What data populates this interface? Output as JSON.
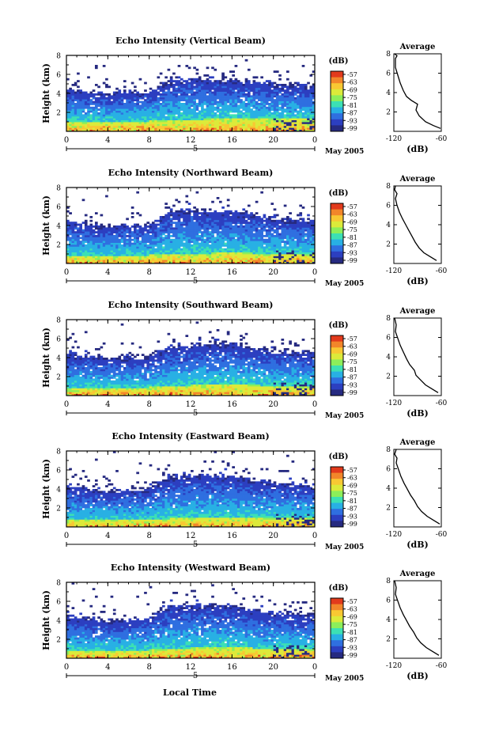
{
  "figure": {
    "shared_xlabel": "Local Time",
    "date_label": "May 2005",
    "day_label": "5",
    "colorbar_unit": "(dB)",
    "colorbar_ticks": [
      "-57",
      "-63",
      "-69",
      "-75",
      "-81",
      "-87",
      "-93",
      "-99"
    ],
    "colorbar_colors": [
      "#e23a1c",
      "#f2862a",
      "#f8c833",
      "#dcea3a",
      "#8cee5a",
      "#3ce0b4",
      "#28b0e4",
      "#2f6fe0",
      "#2c3fc0",
      "#262a80"
    ],
    "average_title": "Average",
    "average_xlabel": "(dB)"
  },
  "chart_data": [
    {
      "type": "heatmap",
      "title": "Echo Intensity (Vertical Beam)",
      "xlabel": "",
      "ylabel": "Height (km)",
      "xlim": [
        0,
        24
      ],
      "ylim": [
        0,
        8
      ],
      "x_ticks": [
        "0",
        "4",
        "8",
        "12",
        "16",
        "20",
        "0"
      ],
      "y_ticks": [
        "2",
        "4",
        "6",
        "8"
      ],
      "x_tick_values": [
        0,
        4,
        8,
        12,
        16,
        20,
        24
      ],
      "y_tick_values": [
        2,
        4,
        6,
        8
      ],
      "colorbar_range": [
        -99,
        -57
      ],
      "description_values": {
        "echo_top_km": [
          [
            0,
            4.6
          ],
          [
            4,
            4.0
          ],
          [
            8,
            4.2
          ],
          [
            10,
            5.5
          ],
          [
            12,
            5.6
          ],
          [
            16,
            5.5
          ],
          [
            20,
            5.0
          ],
          [
            24,
            4.8
          ]
        ],
        "strong_layer_top_km": [
          [
            0,
            1.0
          ],
          [
            8,
            1.1
          ],
          [
            12,
            1.2
          ],
          [
            16,
            1.5
          ],
          [
            20,
            1.3
          ],
          [
            24,
            1.4
          ]
        ]
      }
    },
    {
      "type": "heatmap",
      "title": "Echo Intensity (Northward Beam)",
      "xlabel": "",
      "ylabel": "Height (km)",
      "xlim": [
        0,
        24
      ],
      "ylim": [
        0,
        8
      ],
      "x_ticks": [
        "0",
        "4",
        "8",
        "12",
        "16",
        "20",
        "0"
      ],
      "y_ticks": [
        "2",
        "4",
        "6",
        "8"
      ],
      "x_tick_values": [
        0,
        4,
        8,
        12,
        16,
        20,
        24
      ],
      "y_tick_values": [
        2,
        4,
        6,
        8
      ],
      "colorbar_range": [
        -99,
        -57
      ],
      "description_values": {
        "echo_top_km": [
          [
            0,
            4.5
          ],
          [
            4,
            3.9
          ],
          [
            8,
            4.1
          ],
          [
            10,
            5.5
          ],
          [
            12,
            5.7
          ],
          [
            16,
            5.6
          ],
          [
            20,
            4.8
          ],
          [
            24,
            4.5
          ]
        ],
        "strong_layer_top_km": [
          [
            0,
            0.8
          ],
          [
            8,
            0.9
          ],
          [
            12,
            1.0
          ],
          [
            16,
            1.2
          ],
          [
            20,
            1.0
          ],
          [
            24,
            1.1
          ]
        ]
      }
    },
    {
      "type": "heatmap",
      "title": "Echo Intensity (Southward Beam)",
      "xlabel": "",
      "ylabel": "Height (km)",
      "xlim": [
        0,
        24
      ],
      "ylim": [
        0,
        8
      ],
      "x_ticks": [
        "0",
        "4",
        "8",
        "12",
        "16",
        "20",
        "0"
      ],
      "y_ticks": [
        "2",
        "4",
        "6",
        "8"
      ],
      "x_tick_values": [
        0,
        4,
        8,
        12,
        16,
        20,
        24
      ],
      "y_tick_values": [
        2,
        4,
        6,
        8
      ],
      "colorbar_range": [
        -99,
        -57
      ],
      "description_values": {
        "echo_top_km": [
          [
            0,
            4.6
          ],
          [
            4,
            4.0
          ],
          [
            8,
            4.1
          ],
          [
            10,
            5.3
          ],
          [
            12,
            5.4
          ],
          [
            16,
            5.5
          ],
          [
            20,
            4.7
          ],
          [
            24,
            4.6
          ]
        ],
        "strong_layer_top_km": [
          [
            0,
            0.8
          ],
          [
            8,
            0.9
          ],
          [
            12,
            1.1
          ],
          [
            16,
            1.3
          ],
          [
            20,
            1.0
          ],
          [
            24,
            1.1
          ]
        ]
      }
    },
    {
      "type": "heatmap",
      "title": "Echo Intensity (Eastward Beam)",
      "xlabel": "",
      "ylabel": "Height (km)",
      "xlim": [
        0,
        24
      ],
      "ylim": [
        0,
        8
      ],
      "x_ticks": [
        "0",
        "4",
        "8",
        "12",
        "16",
        "20",
        "0"
      ],
      "y_ticks": [
        "2",
        "4",
        "6",
        "8"
      ],
      "x_tick_values": [
        0,
        4,
        8,
        12,
        16,
        20,
        24
      ],
      "y_tick_values": [
        2,
        4,
        6,
        8
      ],
      "colorbar_range": [
        -99,
        -57
      ],
      "description_values": {
        "echo_top_km": [
          [
            0,
            4.4
          ],
          [
            4,
            3.8
          ],
          [
            8,
            4.0
          ],
          [
            10,
            5.4
          ],
          [
            12,
            5.5
          ],
          [
            16,
            5.5
          ],
          [
            20,
            4.6
          ],
          [
            24,
            4.4
          ]
        ],
        "strong_layer_top_km": [
          [
            0,
            0.7
          ],
          [
            8,
            0.8
          ],
          [
            12,
            1.0
          ],
          [
            16,
            1.1
          ],
          [
            20,
            0.9
          ],
          [
            24,
            1.0
          ]
        ]
      }
    },
    {
      "type": "heatmap",
      "title": "Echo Intensity (Westward Beam)",
      "xlabel": "",
      "ylabel": "Height (km)",
      "xlim": [
        0,
        24
      ],
      "ylim": [
        0,
        8
      ],
      "x_ticks": [
        "0",
        "4",
        "8",
        "12",
        "16",
        "20",
        "0"
      ],
      "y_ticks": [
        "2",
        "4",
        "6",
        "8"
      ],
      "x_tick_values": [
        0,
        4,
        8,
        12,
        16,
        20,
        24
      ],
      "y_tick_values": [
        2,
        4,
        6,
        8
      ],
      "colorbar_range": [
        -99,
        -57
      ],
      "description_values": {
        "echo_top_km": [
          [
            0,
            4.6
          ],
          [
            4,
            4.0
          ],
          [
            8,
            4.2
          ],
          [
            10,
            5.6
          ],
          [
            12,
            5.7
          ],
          [
            16,
            5.6
          ],
          [
            20,
            4.8
          ],
          [
            24,
            4.6
          ]
        ],
        "strong_layer_top_km": [
          [
            0,
            0.8
          ],
          [
            8,
            0.9
          ],
          [
            12,
            1.1
          ],
          [
            16,
            1.2
          ],
          [
            20,
            1.0
          ],
          [
            24,
            1.1
          ]
        ]
      }
    },
    {
      "type": "line",
      "title": "Average",
      "xlabel": "(dB)",
      "ylabel": "",
      "xlim": [
        -120,
        -60
      ],
      "ylim": [
        0,
        8
      ],
      "x_ticks": [
        "-120",
        "-60"
      ],
      "y_ticks": [
        "2",
        "4",
        "6",
        "8"
      ],
      "x_tick_values": [
        -120,
        -60
      ],
      "y_tick_values": [
        2,
        4,
        6,
        8
      ],
      "series": [
        {
          "x": [
            -61,
            -70,
            -80,
            -88,
            -92,
            -90,
            -98,
            -104,
            -108,
            -112,
            -115,
            -118,
            -118,
            -118,
            -116,
            -119
          ],
          "y": [
            0.3,
            0.6,
            1.0,
            1.6,
            2.2,
            2.8,
            3.2,
            3.6,
            4.2,
            5.0,
            5.8,
            6.6,
            7.2,
            7.5,
            7.8,
            8.0
          ]
        }
      ]
    },
    {
      "type": "line",
      "title": "Average",
      "xlabel": "(dB)",
      "ylabel": "",
      "xlim": [
        -120,
        -60
      ],
      "ylim": [
        0,
        8
      ],
      "x_ticks": [
        "-120",
        "-60"
      ],
      "y_ticks": [
        "2",
        "4",
        "6",
        "8"
      ],
      "x_tick_values": [
        -120,
        -60
      ],
      "y_tick_values": [
        2,
        4,
        6,
        8
      ],
      "series": [
        {
          "x": [
            -66,
            -74,
            -82,
            -88,
            -93,
            -97,
            -101,
            -105,
            -109,
            -113,
            -116,
            -118,
            -116,
            -119,
            -118
          ],
          "y": [
            0.3,
            0.7,
            1.1,
            1.6,
            2.2,
            2.8,
            3.4,
            4.0,
            4.6,
            5.3,
            6.0,
            6.7,
            7.2,
            7.6,
            8.0
          ]
        }
      ]
    },
    {
      "type": "line",
      "title": "Average",
      "xlabel": "(dB)",
      "ylabel": "",
      "xlim": [
        -120,
        -60
      ],
      "ylim": [
        0,
        8
      ],
      "x_ticks": [
        "-120",
        "-60"
      ],
      "y_ticks": [
        "2",
        "4",
        "6",
        "8"
      ],
      "x_tick_values": [
        -120,
        -60
      ],
      "y_tick_values": [
        2,
        4,
        6,
        8
      ],
      "series": [
        {
          "x": [
            -64,
            -72,
            -80,
            -86,
            -92,
            -94,
            -100,
            -104,
            -108,
            -112,
            -115,
            -118,
            -117,
            -119
          ],
          "y": [
            0.3,
            0.7,
            1.1,
            1.6,
            2.1,
            2.6,
            3.2,
            3.8,
            4.5,
            5.2,
            5.9,
            6.6,
            7.3,
            8.0
          ]
        }
      ]
    },
    {
      "type": "line",
      "title": "Average",
      "xlabel": "(dB)",
      "ylabel": "",
      "xlim": [
        -120,
        -60
      ],
      "ylim": [
        0,
        8
      ],
      "x_ticks": [
        "-120",
        "-60"
      ],
      "y_ticks": [
        "2",
        "4",
        "6",
        "8"
      ],
      "x_tick_values": [
        -120,
        -60
      ],
      "y_tick_values": [
        2,
        4,
        6,
        8
      ],
      "series": [
        {
          "x": [
            -62,
            -70,
            -78,
            -85,
            -90,
            -94,
            -99,
            -103,
            -107,
            -111,
            -114,
            -117,
            -116,
            -119,
            -117
          ],
          "y": [
            0.3,
            0.7,
            1.1,
            1.6,
            2.1,
            2.7,
            3.3,
            3.9,
            4.5,
            5.2,
            5.9,
            6.6,
            7.1,
            7.5,
            8.0
          ]
        }
      ]
    },
    {
      "type": "line",
      "title": "Average",
      "xlabel": "(dB)",
      "ylabel": "",
      "xlim": [
        -120,
        -60
      ],
      "ylim": [
        0,
        8
      ],
      "x_ticks": [
        "-120",
        "-60"
      ],
      "y_ticks": [
        "2",
        "4",
        "6",
        "8"
      ],
      "x_tick_values": [
        -120,
        -60
      ],
      "y_tick_values": [
        2,
        4,
        6,
        8
      ],
      "series": [
        {
          "x": [
            -63,
            -71,
            -79,
            -86,
            -91,
            -95,
            -100,
            -104,
            -108,
            -112,
            -115,
            -118,
            -117,
            -119
          ],
          "y": [
            0.3,
            0.7,
            1.1,
            1.6,
            2.1,
            2.7,
            3.3,
            3.9,
            4.5,
            5.2,
            5.9,
            6.6,
            7.3,
            8.0
          ]
        }
      ]
    }
  ]
}
